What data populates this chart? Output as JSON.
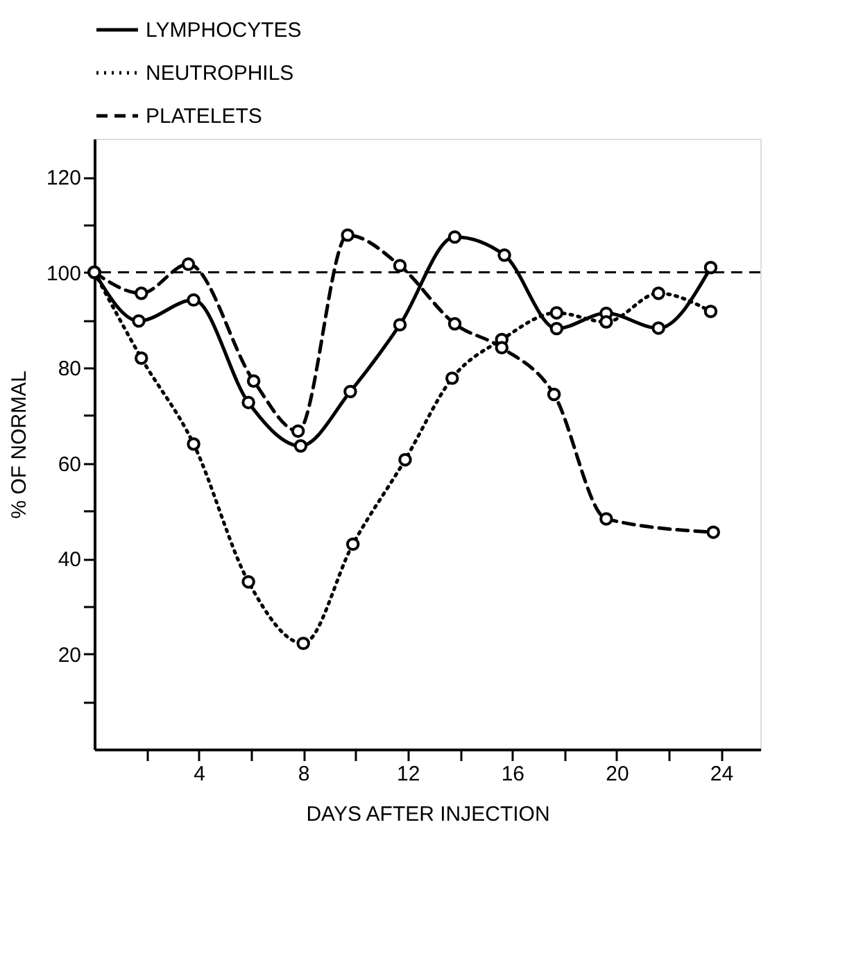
{
  "chart_data": {
    "type": "line",
    "xlabel": "DAYS AFTER INJECTION",
    "ylabel": "% OF NORMAL",
    "xlim": [
      0,
      25.5
    ],
    "xticks": [
      {
        "value": 2,
        "label": null
      },
      4,
      {
        "value": 6,
        "label": null
      },
      8,
      {
        "value": 10,
        "label": null
      },
      12,
      {
        "value": 14,
        "label": null
      },
      16,
      {
        "value": 18,
        "label": null
      },
      20,
      {
        "value": 22,
        "label": null
      },
      24
    ],
    "ylim": [
      0,
      128
    ],
    "yticks": [
      {
        "value": 10,
        "label": null
      },
      20,
      {
        "value": 30,
        "label": null
      },
      40,
      {
        "value": 50,
        "label": null
      },
      60,
      {
        "value": 70,
        "label": null
      },
      80,
      {
        "value": 90,
        "label": null
      },
      100,
      {
        "value": 110,
        "label": null
      },
      120
    ],
    "legend": "top",
    "marker": "circle",
    "grid": false,
    "ref_lines": [
      {
        "axis": "y",
        "value": 100,
        "label": null,
        "color": "#000000",
        "line_style": "dashed"
      }
    ],
    "series": [
      {
        "name": "LYMPHOCYTES",
        "color": "#000000",
        "line_style": "solid",
        "x": [
          0,
          1.7,
          3.8,
          5.9,
          7.9,
          9.8,
          11.7,
          13.8,
          15.7,
          17.7,
          19.6,
          21.6,
          23.6
        ],
        "values": [
          100,
          89.8,
          94.2,
          72.7,
          63.6,
          75,
          89,
          107.4,
          103.6,
          88.2,
          91.4,
          88.3,
          101
        ]
      },
      {
        "name": "NEUTROPHILS",
        "color": "#000000",
        "line_style": "dotted",
        "x": [
          0,
          1.8,
          3.8,
          5.9,
          8.0,
          9.9,
          11.9,
          13.7,
          15.6,
          17.7,
          19.6,
          21.6,
          23.6
        ],
        "values": [
          100,
          82,
          64,
          35.1,
          22.2,
          43,
          60.7,
          77.8,
          85.9,
          91.5,
          89.6,
          95.6,
          91.8
        ]
      },
      {
        "name": "PLATELETS",
        "color": "#000000",
        "line_style": "dashed",
        "x": [
          0,
          1.8,
          3.6,
          6.1,
          7.8,
          9.7,
          11.7,
          13.8,
          15.6,
          17.6,
          19.6,
          23.7
        ],
        "values": [
          100,
          95.6,
          101.7,
          77.2,
          66.7,
          107.8,
          101.4,
          89.2,
          84.2,
          74.4,
          48.3,
          45.5
        ]
      }
    ]
  }
}
